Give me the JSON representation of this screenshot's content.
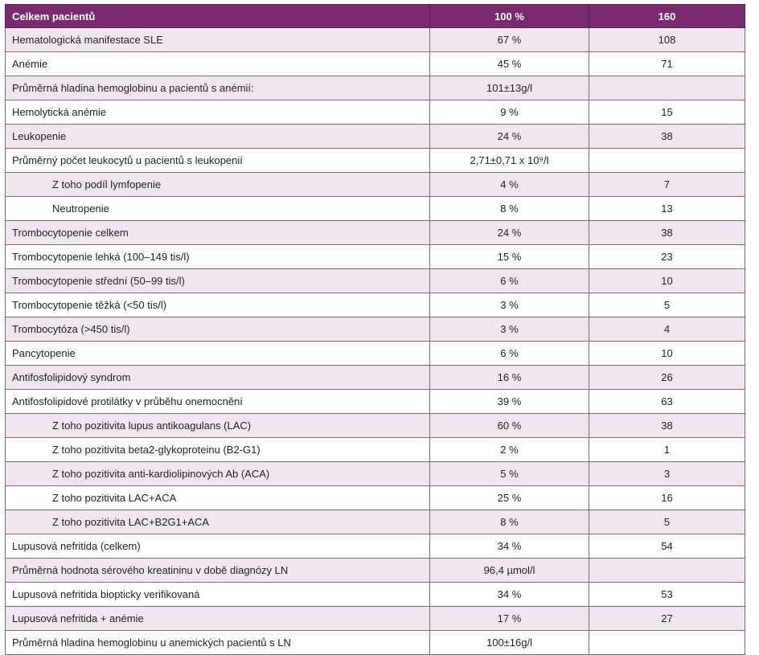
{
  "table": {
    "headers": [
      "Celkem pacientů",
      "100 %",
      "160"
    ],
    "rows": [
      {
        "label": "Hematologická manifestace SLE",
        "pct": "67 %",
        "count": "108",
        "indent": false,
        "shade": true
      },
      {
        "label": "Anémie",
        "pct": "45 %",
        "count": "71",
        "indent": false,
        "shade": false
      },
      {
        "label": "Průměrná hladina hemoglobinu a pacientů s anémií:",
        "pct": "101±13g/l",
        "count": "",
        "indent": false,
        "shade": true
      },
      {
        "label": "Hemolytická anémie",
        "pct": "9 %",
        "count": "15",
        "indent": false,
        "shade": false
      },
      {
        "label": "Leukopenie",
        "pct": "24 %",
        "count": "38",
        "indent": false,
        "shade": true
      },
      {
        "label": "Průměrný počet leukocytů u pacientů s leukopenií",
        "pct": "2,71±0,71 x 10⁹/l",
        "count": "",
        "indent": false,
        "shade": false
      },
      {
        "label": "Z toho podíl lymfopenie",
        "pct": "4 %",
        "count": "7",
        "indent": true,
        "shade": true
      },
      {
        "label": "Neutropenie",
        "pct": "8 %",
        "count": "13",
        "indent": true,
        "shade": false
      },
      {
        "label": "Trombocytopenie celkem",
        "pct": "24 %",
        "count": "38",
        "indent": false,
        "shade": true
      },
      {
        "label": "Trombocytopenie lehká (100–149 tis/l)",
        "pct": "15 %",
        "count": "23",
        "indent": false,
        "shade": false
      },
      {
        "label": "Trombocytopenie střední (50–99 tis/l)",
        "pct": "6 %",
        "count": "10",
        "indent": false,
        "shade": true
      },
      {
        "label": "Trombocytopenie těžká (<50 tis/l)",
        "pct": "3 %",
        "count": "5",
        "indent": false,
        "shade": false
      },
      {
        "label": "Trombocytóza (>450 tis/l)",
        "pct": "3 %",
        "count": "4",
        "indent": false,
        "shade": true
      },
      {
        "label": "Pancytopenie",
        "pct": "6 %",
        "count": "10",
        "indent": false,
        "shade": false
      },
      {
        "label": "Antifosfolipidový syndrom",
        "pct": "16 %",
        "count": "26",
        "indent": false,
        "shade": true
      },
      {
        "label": "Antifosfolipidové protilátky v průběhu onemocnění",
        "pct": "39 %",
        "count": "63",
        "indent": false,
        "shade": false
      },
      {
        "label": "Z toho pozitivita lupus antikoagulans (LAC)",
        "pct": "60 %",
        "count": "38",
        "indent": true,
        "shade": true
      },
      {
        "label": "Z toho pozitivita beta2-glykoproteinu (B2-G1)",
        "pct": "2 %",
        "count": "1",
        "indent": true,
        "shade": false
      },
      {
        "label": "Z toho pozitivita anti-kardiolipinových Ab (ACA)",
        "pct": "5 %",
        "count": "3",
        "indent": true,
        "shade": true
      },
      {
        "label": "Z toho pozitivita LAC+ACA",
        "pct": "25 %",
        "count": "16",
        "indent": true,
        "shade": false
      },
      {
        "label": "Z toho pozitivita LAC+B2G1+ACA",
        "pct": "8 %",
        "count": "5",
        "indent": true,
        "shade": true
      },
      {
        "label": "Lupusová nefritida (celkem)",
        "pct": "34 %",
        "count": "54",
        "indent": false,
        "shade": false
      },
      {
        "label": "Průměrná hodnota sérového kreatininu v době diagnózy LN",
        "pct": "96,4 µmol/l",
        "count": "",
        "indent": false,
        "shade": true
      },
      {
        "label": "Lupusová nefritida biopticky verifikovaná",
        "pct": "34 %",
        "count": "53",
        "indent": false,
        "shade": false
      },
      {
        "label": "Lupusová nefritida + anémie",
        "pct": "17 %",
        "count": "27",
        "indent": false,
        "shade": true
      },
      {
        "label": "Průměrná hladina hemoglobinu u anemických pacientů s LN",
        "pct": "100±16g/l",
        "count": "",
        "indent": false,
        "shade": false
      }
    ]
  },
  "colors": {
    "header_bg": "#7a2a6e",
    "row_shade": "#f1e6ef",
    "border": "#6f6f6f"
  }
}
